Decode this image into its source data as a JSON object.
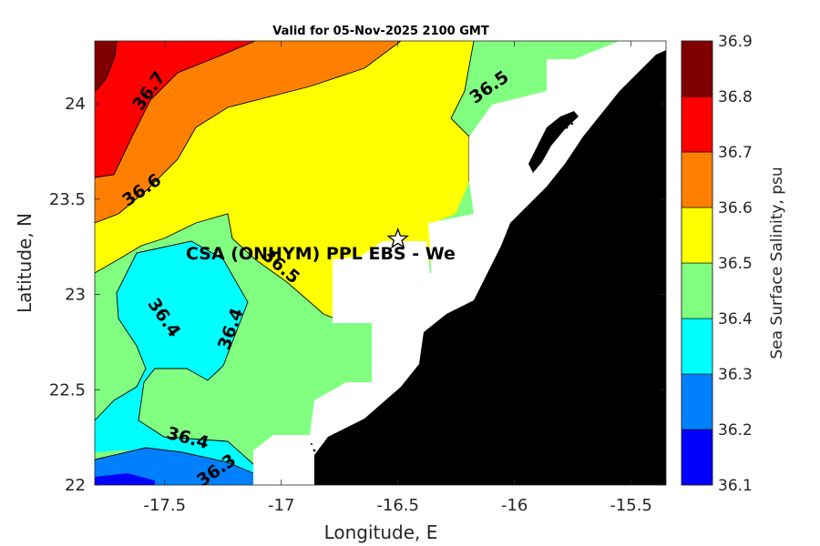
{
  "chart_data": {
    "type": "contour",
    "title": "Valid for 05-Nov-2025 2100 GMT",
    "xlabel": "Longitude, E",
    "ylabel": "Latitude, N",
    "xlim": [
      -17.8,
      -15.35
    ],
    "ylim": [
      22.0,
      24.33
    ],
    "xticks": [
      -17.5,
      -17,
      -16.5,
      -16,
      -15.5
    ],
    "xtick_labels": [
      "-17.5",
      "-17",
      "-16.5",
      "-16",
      "-15.5"
    ],
    "yticks": [
      22,
      22.5,
      23,
      23.5,
      24
    ],
    "ytick_labels": [
      "22",
      "22.5",
      "23",
      "23.5",
      "24"
    ],
    "colorbar": {
      "label": "Sea Surface Salinity, psu",
      "levels": [
        36.1,
        36.2,
        36.3,
        36.4,
        36.5,
        36.6,
        36.7,
        36.8,
        36.9
      ],
      "level_labels": [
        "36.1",
        "36.2",
        "36.3",
        "36.4",
        "36.5",
        "36.6",
        "36.7",
        "36.8",
        "36.9"
      ],
      "colors": [
        "#0000ff",
        "#0080ff",
        "#00ffff",
        "#80ff80",
        "#ffff00",
        "#ff8000",
        "#ff0000",
        "#800000"
      ]
    },
    "contour_labels": [
      {
        "text": "36.7",
        "lon": -17.57,
        "lat": 24.07,
        "angle": -55
      },
      {
        "text": "36.6",
        "lon": -17.6,
        "lat": 23.55,
        "angle": -35
      },
      {
        "text": "36.5",
        "lon": -16.11,
        "lat": 24.09,
        "angle": -35
      },
      {
        "text": "36.5",
        "lon": -17.0,
        "lat": 23.15,
        "angle": 40
      },
      {
        "text": "36.4",
        "lon": -17.5,
        "lat": 22.88,
        "angle": 55
      },
      {
        "text": "36.4",
        "lon": -17.22,
        "lat": 22.82,
        "angle": -70
      },
      {
        "text": "36.4",
        "lon": -17.4,
        "lat": 22.25,
        "angle": 15
      },
      {
        "text": "36.3",
        "lon": -17.28,
        "lat": 22.08,
        "angle": -35
      }
    ],
    "site": {
      "label": "CSA (ONHYM) PPL EBS  - We",
      "lon": -16.5,
      "lat": 23.29
    },
    "land_color": "#000000",
    "nodata_color": "#ffffff"
  }
}
